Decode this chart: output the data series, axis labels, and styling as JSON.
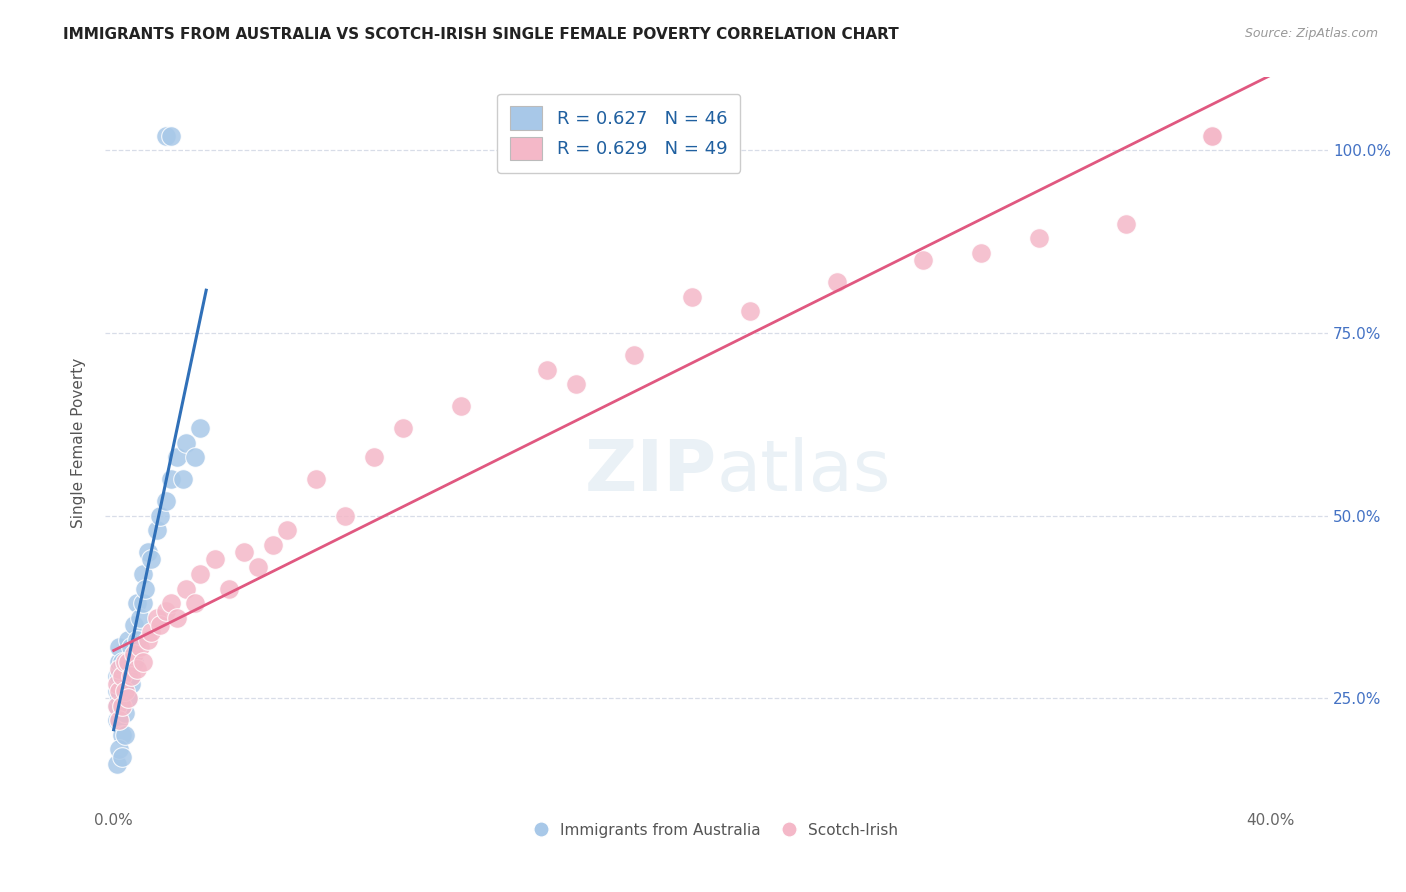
{
  "title": "IMMIGRANTS FROM AUSTRALIA VS SCOTCH-IRISH SINGLE FEMALE POVERTY CORRELATION CHART",
  "source": "Source: ZipAtlas.com",
  "ylabel_label": "Single Female Poverty",
  "xlim": [
    0.0,
    0.4
  ],
  "ylim": [
    0.1,
    1.08
  ],
  "blue_R": "0.627",
  "blue_N": "46",
  "pink_R": "0.629",
  "pink_N": "49",
  "blue_label": "Immigrants from Australia",
  "pink_label": "Scotch-Irish",
  "blue_color": "#a8c8e8",
  "pink_color": "#f4b8c8",
  "blue_line_color": "#3070b8",
  "pink_line_color": "#e05880",
  "legend_R_N_color": "#2060a0",
  "watermark": "ZIPatlas",
  "blue_scatter_x": [
    0.001,
    0.001,
    0.001,
    0.001,
    0.002,
    0.002,
    0.002,
    0.002,
    0.002,
    0.003,
    0.003,
    0.003,
    0.003,
    0.004,
    0.004,
    0.004,
    0.005,
    0.005,
    0.005,
    0.006,
    0.006,
    0.007,
    0.007,
    0.008,
    0.008,
    0.009,
    0.01,
    0.01,
    0.011,
    0.012,
    0.013,
    0.015,
    0.016,
    0.018,
    0.02,
    0.022,
    0.024,
    0.025,
    0.028,
    0.03,
    0.001,
    0.002,
    0.003,
    0.004,
    0.018,
    0.02
  ],
  "blue_scatter_y": [
    0.22,
    0.24,
    0.26,
    0.28,
    0.22,
    0.25,
    0.28,
    0.3,
    0.32,
    0.2,
    0.24,
    0.27,
    0.3,
    0.23,
    0.26,
    0.29,
    0.25,
    0.28,
    0.33,
    0.27,
    0.32,
    0.3,
    0.35,
    0.33,
    0.38,
    0.36,
    0.38,
    0.42,
    0.4,
    0.45,
    0.44,
    0.48,
    0.5,
    0.52,
    0.55,
    0.58,
    0.55,
    0.6,
    0.58,
    0.62,
    0.16,
    0.18,
    0.17,
    0.2,
    1.02,
    1.02
  ],
  "pink_scatter_x": [
    0.001,
    0.001,
    0.002,
    0.002,
    0.002,
    0.003,
    0.003,
    0.004,
    0.004,
    0.005,
    0.005,
    0.006,
    0.007,
    0.008,
    0.009,
    0.01,
    0.012,
    0.013,
    0.015,
    0.016,
    0.018,
    0.02,
    0.022,
    0.025,
    0.028,
    0.03,
    0.035,
    0.04,
    0.045,
    0.05,
    0.055,
    0.06,
    0.07,
    0.08,
    0.09,
    0.1,
    0.12,
    0.15,
    0.16,
    0.18,
    0.2,
    0.22,
    0.25,
    0.28,
    0.3,
    0.32,
    0.35,
    0.38,
    0.38
  ],
  "pink_scatter_y": [
    0.24,
    0.27,
    0.22,
    0.26,
    0.29,
    0.24,
    0.28,
    0.26,
    0.3,
    0.25,
    0.3,
    0.28,
    0.31,
    0.29,
    0.32,
    0.3,
    0.33,
    0.34,
    0.36,
    0.35,
    0.37,
    0.38,
    0.36,
    0.4,
    0.38,
    0.42,
    0.44,
    0.4,
    0.45,
    0.43,
    0.46,
    0.48,
    0.55,
    0.5,
    0.58,
    0.62,
    0.65,
    0.7,
    0.68,
    0.72,
    0.8,
    0.78,
    0.82,
    0.85,
    0.86,
    0.88,
    0.9,
    1.02,
    1.02
  ],
  "background_color": "#ffffff",
  "grid_color": "#d8dde8"
}
